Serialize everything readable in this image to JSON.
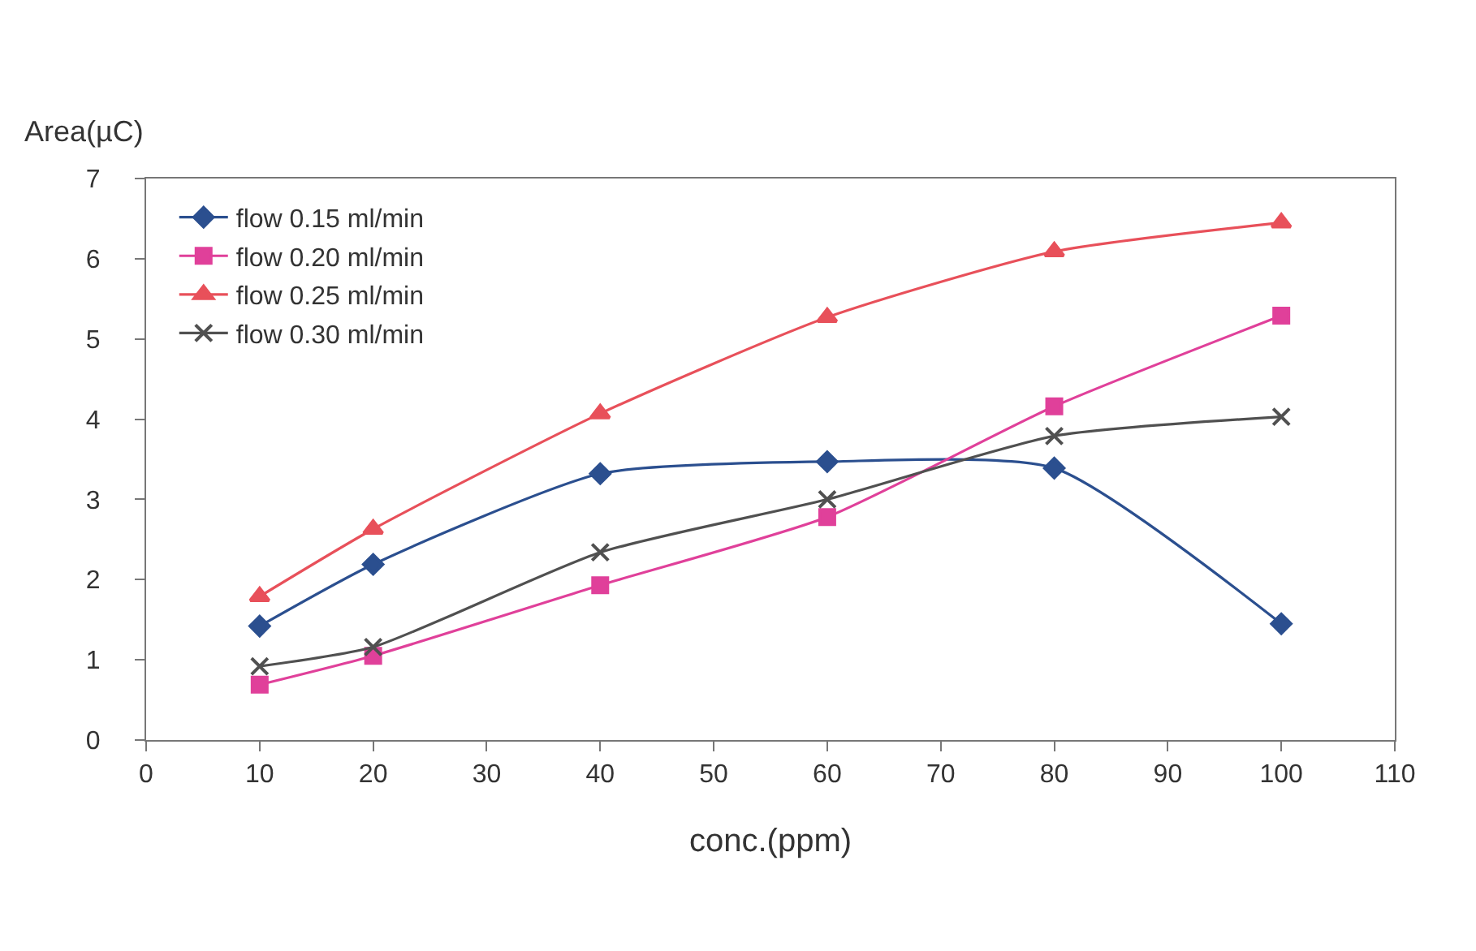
{
  "chart_data": {
    "type": "line",
    "ylabel": "Area(µC)",
    "xlabel": "conc.(ppm)",
    "x": [
      10,
      20,
      40,
      60,
      80,
      100
    ],
    "series": [
      {
        "name": "flow 0.15 ml/min",
        "color": "#2b4f8f",
        "marker": "diamond",
        "values": [
          1.42,
          2.19,
          3.32,
          3.47,
          3.39,
          1.45
        ]
      },
      {
        "name": "flow 0.20 ml/min",
        "color": "#e0409a",
        "marker": "square",
        "values": [
          0.69,
          1.05,
          1.93,
          2.78,
          4.16,
          5.29
        ]
      },
      {
        "name": "flow 0.25 ml/min",
        "color": "#e8505a",
        "marker": "triangle",
        "values": [
          1.79,
          2.63,
          4.07,
          5.27,
          6.09,
          6.45
        ]
      },
      {
        "name": "flow 0.30 ml/min",
        "color": "#505050",
        "marker": "cross",
        "values": [
          0.92,
          1.16,
          2.34,
          3.0,
          3.79,
          4.03
        ]
      }
    ],
    "xlim": [
      0,
      110
    ],
    "xticks": [
      0,
      10,
      20,
      30,
      40,
      50,
      60,
      70,
      80,
      90,
      100,
      110
    ],
    "ylim": [
      0,
      7
    ],
    "yticks": [
      0,
      1,
      2,
      3,
      4,
      5,
      6,
      7
    ],
    "legend": "top left",
    "line_style": "solid"
  }
}
